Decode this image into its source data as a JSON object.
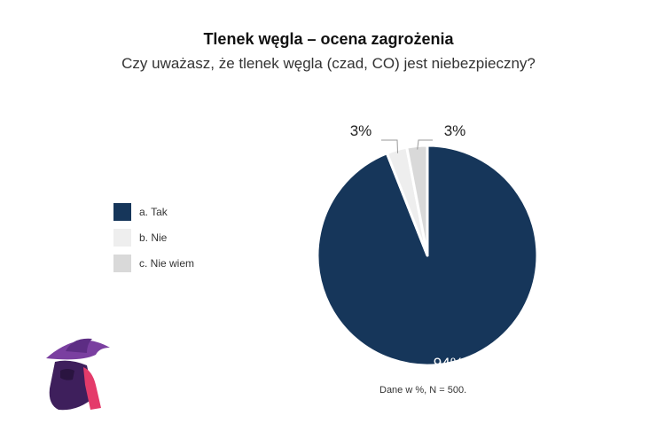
{
  "chart_data": {
    "type": "pie",
    "title": "Tlenek węgla – ocena zagrożenia",
    "subtitle": "Czy uważasz, że tlenek węgla (czad, CO) jest niebezpieczny?",
    "categories": [
      "a. Tak",
      "b. Nie",
      "c. Nie wiem"
    ],
    "values": [
      94,
      3,
      3
    ],
    "value_labels": [
      "94%",
      "3%",
      "3%"
    ],
    "colors": [
      "#16365a",
      "#eeeeee",
      "#d9d9d9"
    ],
    "legend_position": "left",
    "note": "Dane w %, N = 500."
  }
}
